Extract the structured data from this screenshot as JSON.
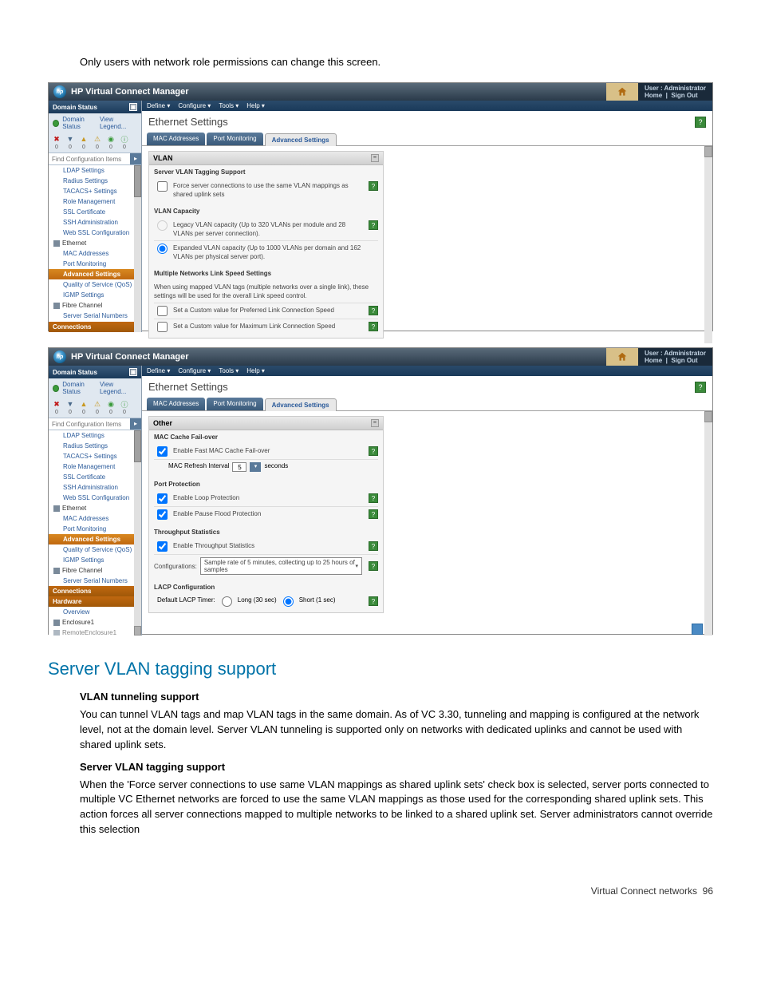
{
  "intro": "Only users with network role permissions can change this screen.",
  "common": {
    "title": "HP Virtual Connect Manager",
    "user_label": "User : Administrator",
    "home_link": "Home",
    "signout_link": "Sign Out",
    "menu": [
      "Define ▾",
      "Configure ▾",
      "Tools ▾",
      "Help ▾"
    ],
    "pageTitle": "Ethernet Settings",
    "tabs": [
      "MAC Addresses",
      "Port Monitoring",
      "Advanced Settings"
    ],
    "domainStatusHdr": "Domain Status",
    "domainStatusLink": "Domain Status",
    "viewLegend": "View Legend...",
    "findPlaceholder": "Find Configuration Items",
    "statusCounts": [
      "0",
      "0",
      "0",
      "0",
      "0",
      "0"
    ],
    "statusColors": [
      "#c01818",
      "#4a6a8a",
      "#c89820",
      "#c89820",
      "#3a9a3a",
      "#3a9a3a"
    ]
  },
  "nav": [
    {
      "label": "LDAP Settings",
      "lvl": 1
    },
    {
      "label": "Radius Settings",
      "lvl": 1
    },
    {
      "label": "TACACS+ Settings",
      "lvl": 1
    },
    {
      "label": "Role Management",
      "lvl": 1
    },
    {
      "label": "SSL Certificate",
      "lvl": 1
    },
    {
      "label": "SSH Administration",
      "lvl": 1
    },
    {
      "label": "Web SSL Configuration",
      "lvl": 1
    },
    {
      "label": "Ethernet",
      "lvl": 0,
      "hdr": true
    },
    {
      "label": "MAC Addresses",
      "lvl": 1
    },
    {
      "label": "Port Monitoring",
      "lvl": 1
    },
    {
      "label": "Advanced Settings",
      "lvl": 1,
      "active": true
    },
    {
      "label": "Quality of Service (QoS)",
      "lvl": 1
    },
    {
      "label": "IGMP Settings",
      "lvl": 1
    },
    {
      "label": "Fibre Channel",
      "lvl": 0,
      "hdr": true
    },
    {
      "label": "Server Serial Numbers",
      "lvl": 1
    }
  ],
  "navBottom1": "Connections",
  "nav2extra": [
    {
      "label": "Connections",
      "sec": true
    },
    {
      "label": "Hardware",
      "sec": true
    },
    {
      "label": "Overview",
      "lvl": 1
    },
    {
      "label": "Enclosure1",
      "lvl": 0,
      "hdr": true
    },
    {
      "label": "RemoteEnclosure1",
      "lvl": 0,
      "hdr": true,
      "cut": true
    }
  ],
  "panel1": {
    "hdr": "VLAN",
    "sec1title": "Server VLAN Tagging Support",
    "sec1opt": "Force server connections to use the same VLAN mappings as shared uplink sets",
    "sec2title": "VLAN Capacity",
    "sec2opt1": "Legacy VLAN capacity (Up to 320 VLANs per module and 28 VLANs per server connection).",
    "sec2opt2": "Expanded VLAN capacity (Up to 1000 VLANs per domain and 162 VLANs per physical server port).",
    "sec3title": "Multiple Networks Link Speed Settings",
    "sec3note": "When using mapped VLAN tags (multiple networks over a single link), these settings will be used for the overall Link speed control.",
    "sec3opt1": "Set a Custom value for Preferred Link Connection Speed",
    "sec3opt2": "Set a Custom value for Maximum Link Connection Speed"
  },
  "panel2": {
    "hdr": "Other",
    "sec1title": "MAC Cache Fail-over",
    "sec1opt": "Enable Fast MAC Cache Fail-over",
    "sec1refresh": "MAC Refresh Interval",
    "sec1val": "5",
    "sec1unit": "seconds",
    "sec2title": "Port Protection",
    "sec2opt1": "Enable Loop Protection",
    "sec2opt2": "Enable Pause Flood Protection",
    "sec3title": "Throughput Statistics",
    "sec3opt": "Enable Throughput Statistics",
    "sec3cfg": "Configurations:",
    "sec3sel": "Sample rate of 5 minutes, collecting up to 25 hours of samples",
    "sec4title": "LACP Configuration",
    "sec4lbl": "Default LACP Timer:",
    "sec4opt1": "Long (30 sec)",
    "sec4opt2": "Short (1 sec)"
  },
  "heading": "Server VLAN tagging support",
  "sub1title": "VLAN tunneling support",
  "sub1text": "You can tunnel VLAN tags and map VLAN tags in the same domain. As of VC 3.30, tunneling and mapping is configured at the network level, not at the domain level. Server VLAN tunneling is supported only on networks with dedicated uplinks and cannot be used with shared uplink sets.",
  "sub2title": "Server VLAN tagging support",
  "sub2text": "When the 'Force server connections to use same VLAN mappings as shared uplink sets' check box is selected, server ports connected to multiple VC Ethernet networks are forced to use the same VLAN mappings as those used for the corresponding shared uplink sets. This action forces all server connections mapped to multiple networks to be linked to a shared uplink set. Server administrators cannot override this selection",
  "footer_label": "Virtual Connect networks",
  "footer_page": "96"
}
